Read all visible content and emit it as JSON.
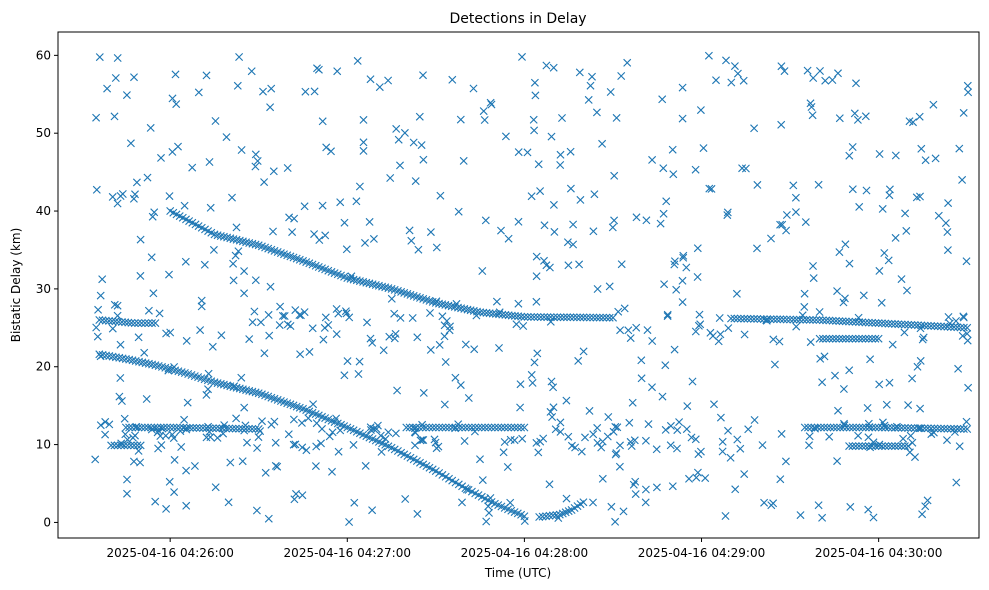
{
  "chart_data": {
    "type": "scatter",
    "title": "Detections in Delay",
    "xlabel": "Time (UTC)",
    "ylabel": "Bistatic Delay (km)",
    "marker": "x",
    "color": "#1f77b4",
    "grid": false,
    "legend": "none",
    "xlim": [
      "2025-04-16 04:25:22",
      "2025-04-16 04:30:34"
    ],
    "ylim": [
      -2,
      63
    ],
    "x_ticks": [
      "2025-04-16 04:26:00",
      "2025-04-16 04:27:00",
      "2025-04-16 04:28:00",
      "2025-04-16 04:29:00",
      "2025-04-16 04:30:00"
    ],
    "y_ticks": [
      "0",
      "10",
      "20",
      "30",
      "40",
      "50",
      "60"
    ],
    "start_time": "2025-04-16 04:25:34",
    "end_time": "2025-04-16 04:30:31",
    "tracks": [
      {
        "points": [
          [
            "2025-04-16 04:25:36",
            21.6
          ],
          [
            "2025-04-16 04:25:45",
            21.0
          ],
          [
            "2025-04-16 04:25:55",
            20.2
          ],
          [
            "2025-04-16 04:26:05",
            19.2
          ],
          [
            "2025-04-16 04:26:15",
            18.0
          ],
          [
            "2025-04-16 04:26:30",
            16.6
          ],
          [
            "2025-04-16 04:26:45",
            14.6
          ],
          [
            "2025-04-16 04:27:00",
            12.2
          ],
          [
            "2025-04-16 04:27:15",
            9.6
          ],
          [
            "2025-04-16 04:27:30",
            6.6
          ],
          [
            "2025-04-16 04:27:40",
            4.4
          ],
          [
            "2025-04-16 04:27:50",
            2.4
          ],
          [
            "2025-04-16 04:28:00",
            0.8
          ]
        ]
      },
      {
        "points": [
          [
            "2025-04-16 04:28:05",
            0.7
          ],
          [
            "2025-04-16 04:28:12",
            1.0
          ],
          [
            "2025-04-16 04:28:16",
            1.6
          ],
          [
            "2025-04-16 04:28:20",
            2.6
          ]
        ]
      },
      {
        "points": [
          [
            "2025-04-16 04:26:00",
            40.0
          ],
          [
            "2025-04-16 04:26:15",
            37.0
          ],
          [
            "2025-04-16 04:26:30",
            35.6
          ],
          [
            "2025-04-16 04:26:45",
            33.6
          ],
          [
            "2025-04-16 04:27:00",
            31.4
          ],
          [
            "2025-04-16 04:27:15",
            30.0
          ],
          [
            "2025-04-16 04:27:30",
            28.2
          ],
          [
            "2025-04-16 04:27:45",
            27.0
          ],
          [
            "2025-04-16 04:28:00",
            26.4
          ],
          [
            "2025-04-16 04:28:30",
            26.3
          ]
        ]
      },
      {
        "points": [
          [
            "2025-04-16 04:25:36",
            26.0
          ],
          [
            "2025-04-16 04:25:48",
            25.6
          ],
          [
            "2025-04-16 04:25:55",
            25.6
          ]
        ]
      },
      {
        "points": [
          [
            "2025-04-16 04:25:45",
            12.2
          ],
          [
            "2025-04-16 04:26:00",
            12.2
          ],
          [
            "2025-04-16 04:26:30",
            12.0
          ]
        ]
      },
      {
        "points": [
          [
            "2025-04-16 04:27:20",
            12.2
          ],
          [
            "2025-04-16 04:28:00",
            12.2
          ]
        ]
      },
      {
        "points": [
          [
            "2025-04-16 04:29:10",
            26.2
          ],
          [
            "2025-04-16 04:29:40",
            26.0
          ],
          [
            "2025-04-16 04:30:30",
            25.0
          ]
        ]
      },
      {
        "points": [
          [
            "2025-04-16 04:29:35",
            12.2
          ],
          [
            "2025-04-16 04:30:00",
            12.2
          ],
          [
            "2025-04-16 04:30:30",
            12.0
          ]
        ]
      },
      {
        "points": [
          [
            "2025-04-16 04:29:40",
            23.6
          ],
          [
            "2025-04-16 04:30:00",
            23.6
          ]
        ]
      },
      {
        "points": [
          [
            "2025-04-16 04:25:40",
            9.9
          ],
          [
            "2025-04-16 04:25:50",
            9.9
          ]
        ]
      },
      {
        "points": [
          [
            "2025-04-16 04:29:50",
            9.8
          ],
          [
            "2025-04-16 04:30:10",
            9.8
          ]
        ]
      }
    ]
  }
}
